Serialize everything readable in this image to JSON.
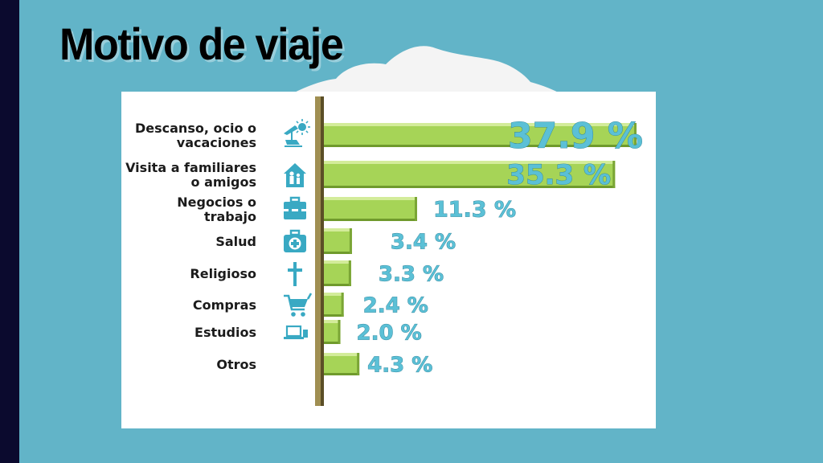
{
  "page": {
    "title": "Motivo de viaje"
  },
  "colors": {
    "background": "#62b4c8",
    "bar": "#a6d457",
    "icon": "#39a9c3",
    "value_text": "#5bc0d6",
    "axis": "#a08f52"
  },
  "chart_data": {
    "type": "bar",
    "orientation": "horizontal",
    "title": "Motivo de viaje",
    "categories": [
      {
        "lines": [
          "Descanso, ocio o",
          "vacaciones"
        ],
        "icon": "sun-beach-chair-icon"
      },
      {
        "lines": [
          "Visita a familiares",
          "o amigos"
        ],
        "icon": "family-house-icon"
      },
      {
        "lines": [
          "Negocios o",
          "trabajo"
        ],
        "icon": "briefcase-icon"
      },
      {
        "lines": [
          "Salud"
        ],
        "icon": "medical-kit-icon"
      },
      {
        "lines": [
          "Religioso"
        ],
        "icon": "cross-icon"
      },
      {
        "lines": [
          "Compras"
        ],
        "icon": "shopping-cart-icon"
      },
      {
        "lines": [
          "Estudios"
        ],
        "icon": "laptop-icon"
      },
      {
        "lines": [
          "Otros"
        ],
        "icon": ""
      }
    ],
    "values": [
      37.9,
      35.3,
      11.3,
      3.4,
      3.3,
      2.4,
      2.0,
      4.3
    ],
    "value_labels": [
      "37.9 %",
      "35.3  %",
      "11.3  %",
      "3.4 %",
      "3.3 %",
      "2.4 %",
      "2.0 %",
      "4.3  %"
    ],
    "unit": "%",
    "xlim": [
      0,
      38
    ]
  }
}
